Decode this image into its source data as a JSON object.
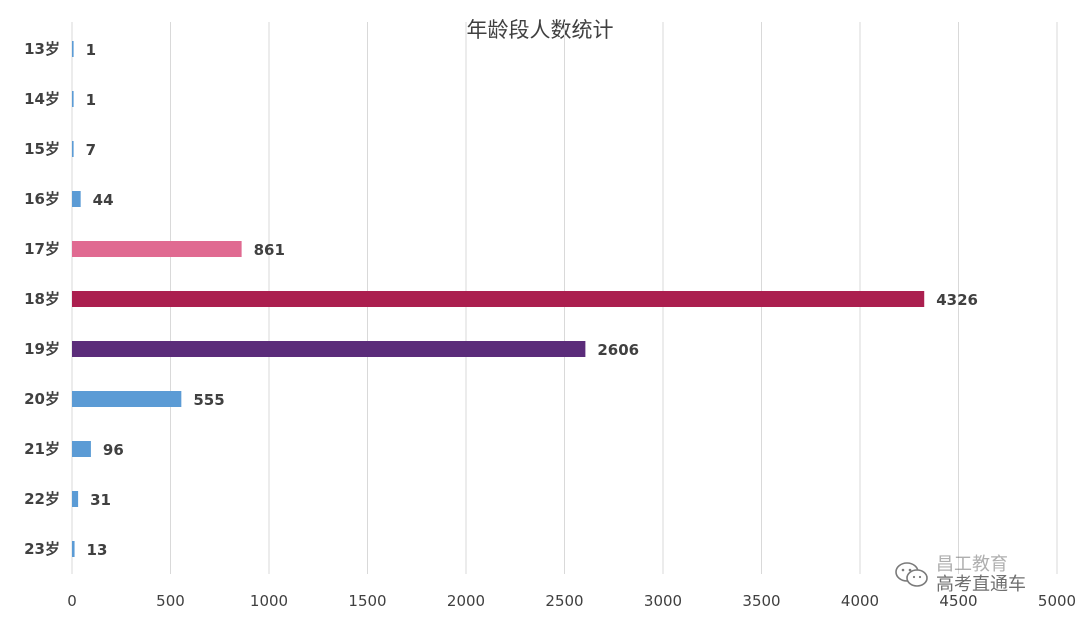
{
  "chart_data": {
    "type": "bar",
    "orientation": "horizontal",
    "title": "年龄段人数统计",
    "categories": [
      "13岁",
      "14岁",
      "15岁",
      "16岁",
      "17岁",
      "18岁",
      "19岁",
      "20岁",
      "21岁",
      "22岁",
      "23岁"
    ],
    "values": [
      1,
      1,
      7,
      44,
      861,
      4326,
      2606,
      555,
      96,
      31,
      13
    ],
    "bar_colors": [
      "#5b9bd5",
      "#5b9bd5",
      "#5b9bd5",
      "#5b9bd5",
      "#e06a91",
      "#ab1f4f",
      "#5b2c7a",
      "#5b9bd5",
      "#5b9bd5",
      "#5b9bd5",
      "#5b9bd5"
    ],
    "xlim": [
      0,
      5000
    ],
    "xticks": [
      0,
      500,
      1000,
      1500,
      2000,
      2500,
      3000,
      3500,
      4000,
      4500,
      5000
    ],
    "grid": true,
    "data_labels": true,
    "legend": "none"
  },
  "watermark": {
    "line1": "昌工教育",
    "line2": "高考直通车",
    "icon": "wechat-icon"
  }
}
